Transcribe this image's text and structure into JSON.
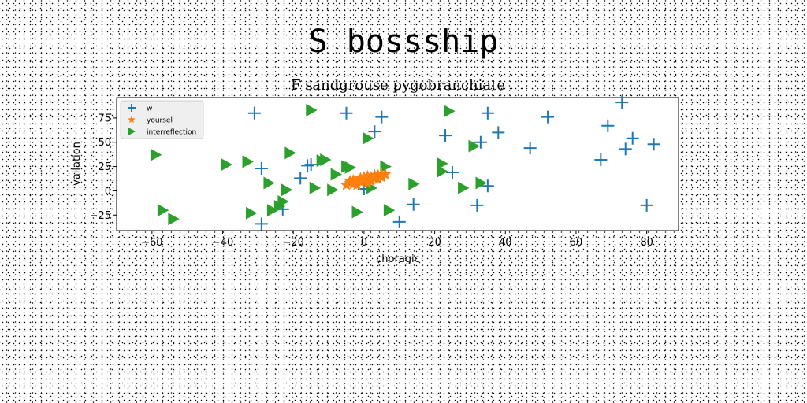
{
  "page_title": "S bossship",
  "chart_data": {
    "type": "scatter",
    "title": "F sandgrouse pygobranchiate",
    "xlabel": "choragic",
    "ylabel": "vallation",
    "xlim": [
      -70,
      89
    ],
    "ylim": [
      -41,
      96
    ],
    "xticks": [
      -60,
      -40,
      -20,
      0,
      20,
      40,
      60,
      80
    ],
    "yticks": [
      -25,
      0,
      25,
      50,
      75
    ],
    "grid": false,
    "legend_position": "upper-left",
    "series": [
      {
        "name": "w",
        "marker": "plus",
        "color": "#1f77b4",
        "points": [
          [
            -31,
            80
          ],
          [
            -29,
            23
          ],
          [
            -29,
            -34
          ],
          [
            -23,
            -19
          ],
          [
            -18,
            13
          ],
          [
            -16,
            26
          ],
          [
            -15,
            27
          ],
          [
            -5,
            80
          ],
          [
            0,
            2
          ],
          [
            3,
            61
          ],
          [
            5,
            76
          ],
          [
            10,
            -32
          ],
          [
            14,
            -14
          ],
          [
            23,
            57
          ],
          [
            25,
            19
          ],
          [
            32,
            -15
          ],
          [
            33,
            50
          ],
          [
            35,
            80
          ],
          [
            35,
            5
          ],
          [
            38,
            60
          ],
          [
            47,
            44
          ],
          [
            52,
            76
          ],
          [
            67,
            32
          ],
          [
            69,
            67
          ],
          [
            73,
            91
          ],
          [
            74,
            43
          ],
          [
            76,
            54
          ],
          [
            80,
            -15
          ],
          [
            82,
            48
          ]
        ]
      },
      {
        "name": "yoursel",
        "marker": "star",
        "color": "#ff7f0e",
        "points": [
          [
            -5,
            6
          ],
          [
            -4,
            8
          ],
          [
            -3,
            7
          ],
          [
            -2,
            10
          ],
          [
            -1,
            9
          ],
          [
            0,
            12
          ],
          [
            1,
            11
          ],
          [
            2,
            14
          ],
          [
            3,
            13
          ],
          [
            4,
            16
          ],
          [
            5,
            17
          ],
          [
            3,
            16
          ],
          [
            1,
            15
          ],
          [
            -1,
            13
          ],
          [
            -3,
            11
          ],
          [
            -4,
            10
          ],
          [
            0,
            14
          ],
          [
            2,
            10
          ],
          [
            4,
            12
          ],
          [
            -2,
            6
          ],
          [
            1,
            8
          ],
          [
            5,
            14
          ],
          [
            6,
            17
          ],
          [
            -1,
            11
          ]
        ]
      },
      {
        "name": "interreflection",
        "marker": "triangle-right",
        "color": "#2ca02c",
        "points": [
          [
            -59,
            37
          ],
          [
            -57,
            -20
          ],
          [
            -54,
            -29
          ],
          [
            -39,
            27
          ],
          [
            -33,
            30
          ],
          [
            -32,
            -23
          ],
          [
            -27,
            8
          ],
          [
            -26,
            -20
          ],
          [
            -24,
            -16
          ],
          [
            -23,
            -11
          ],
          [
            -22,
            1
          ],
          [
            -21,
            39
          ],
          [
            -14,
            3
          ],
          [
            -15,
            83
          ],
          [
            -12,
            31
          ],
          [
            -11,
            32
          ],
          [
            -9,
            1
          ],
          [
            -8,
            17
          ],
          [
            -5,
            25
          ],
          [
            -4,
            24
          ],
          [
            -2,
            -22
          ],
          [
            1,
            54
          ],
          [
            2,
            3
          ],
          [
            6,
            25
          ],
          [
            7,
            -20
          ],
          [
            14,
            7
          ],
          [
            22,
            28
          ],
          [
            22,
            20
          ],
          [
            24,
            82
          ],
          [
            28,
            3
          ],
          [
            31,
            46
          ],
          [
            33,
            8
          ]
        ]
      }
    ]
  }
}
